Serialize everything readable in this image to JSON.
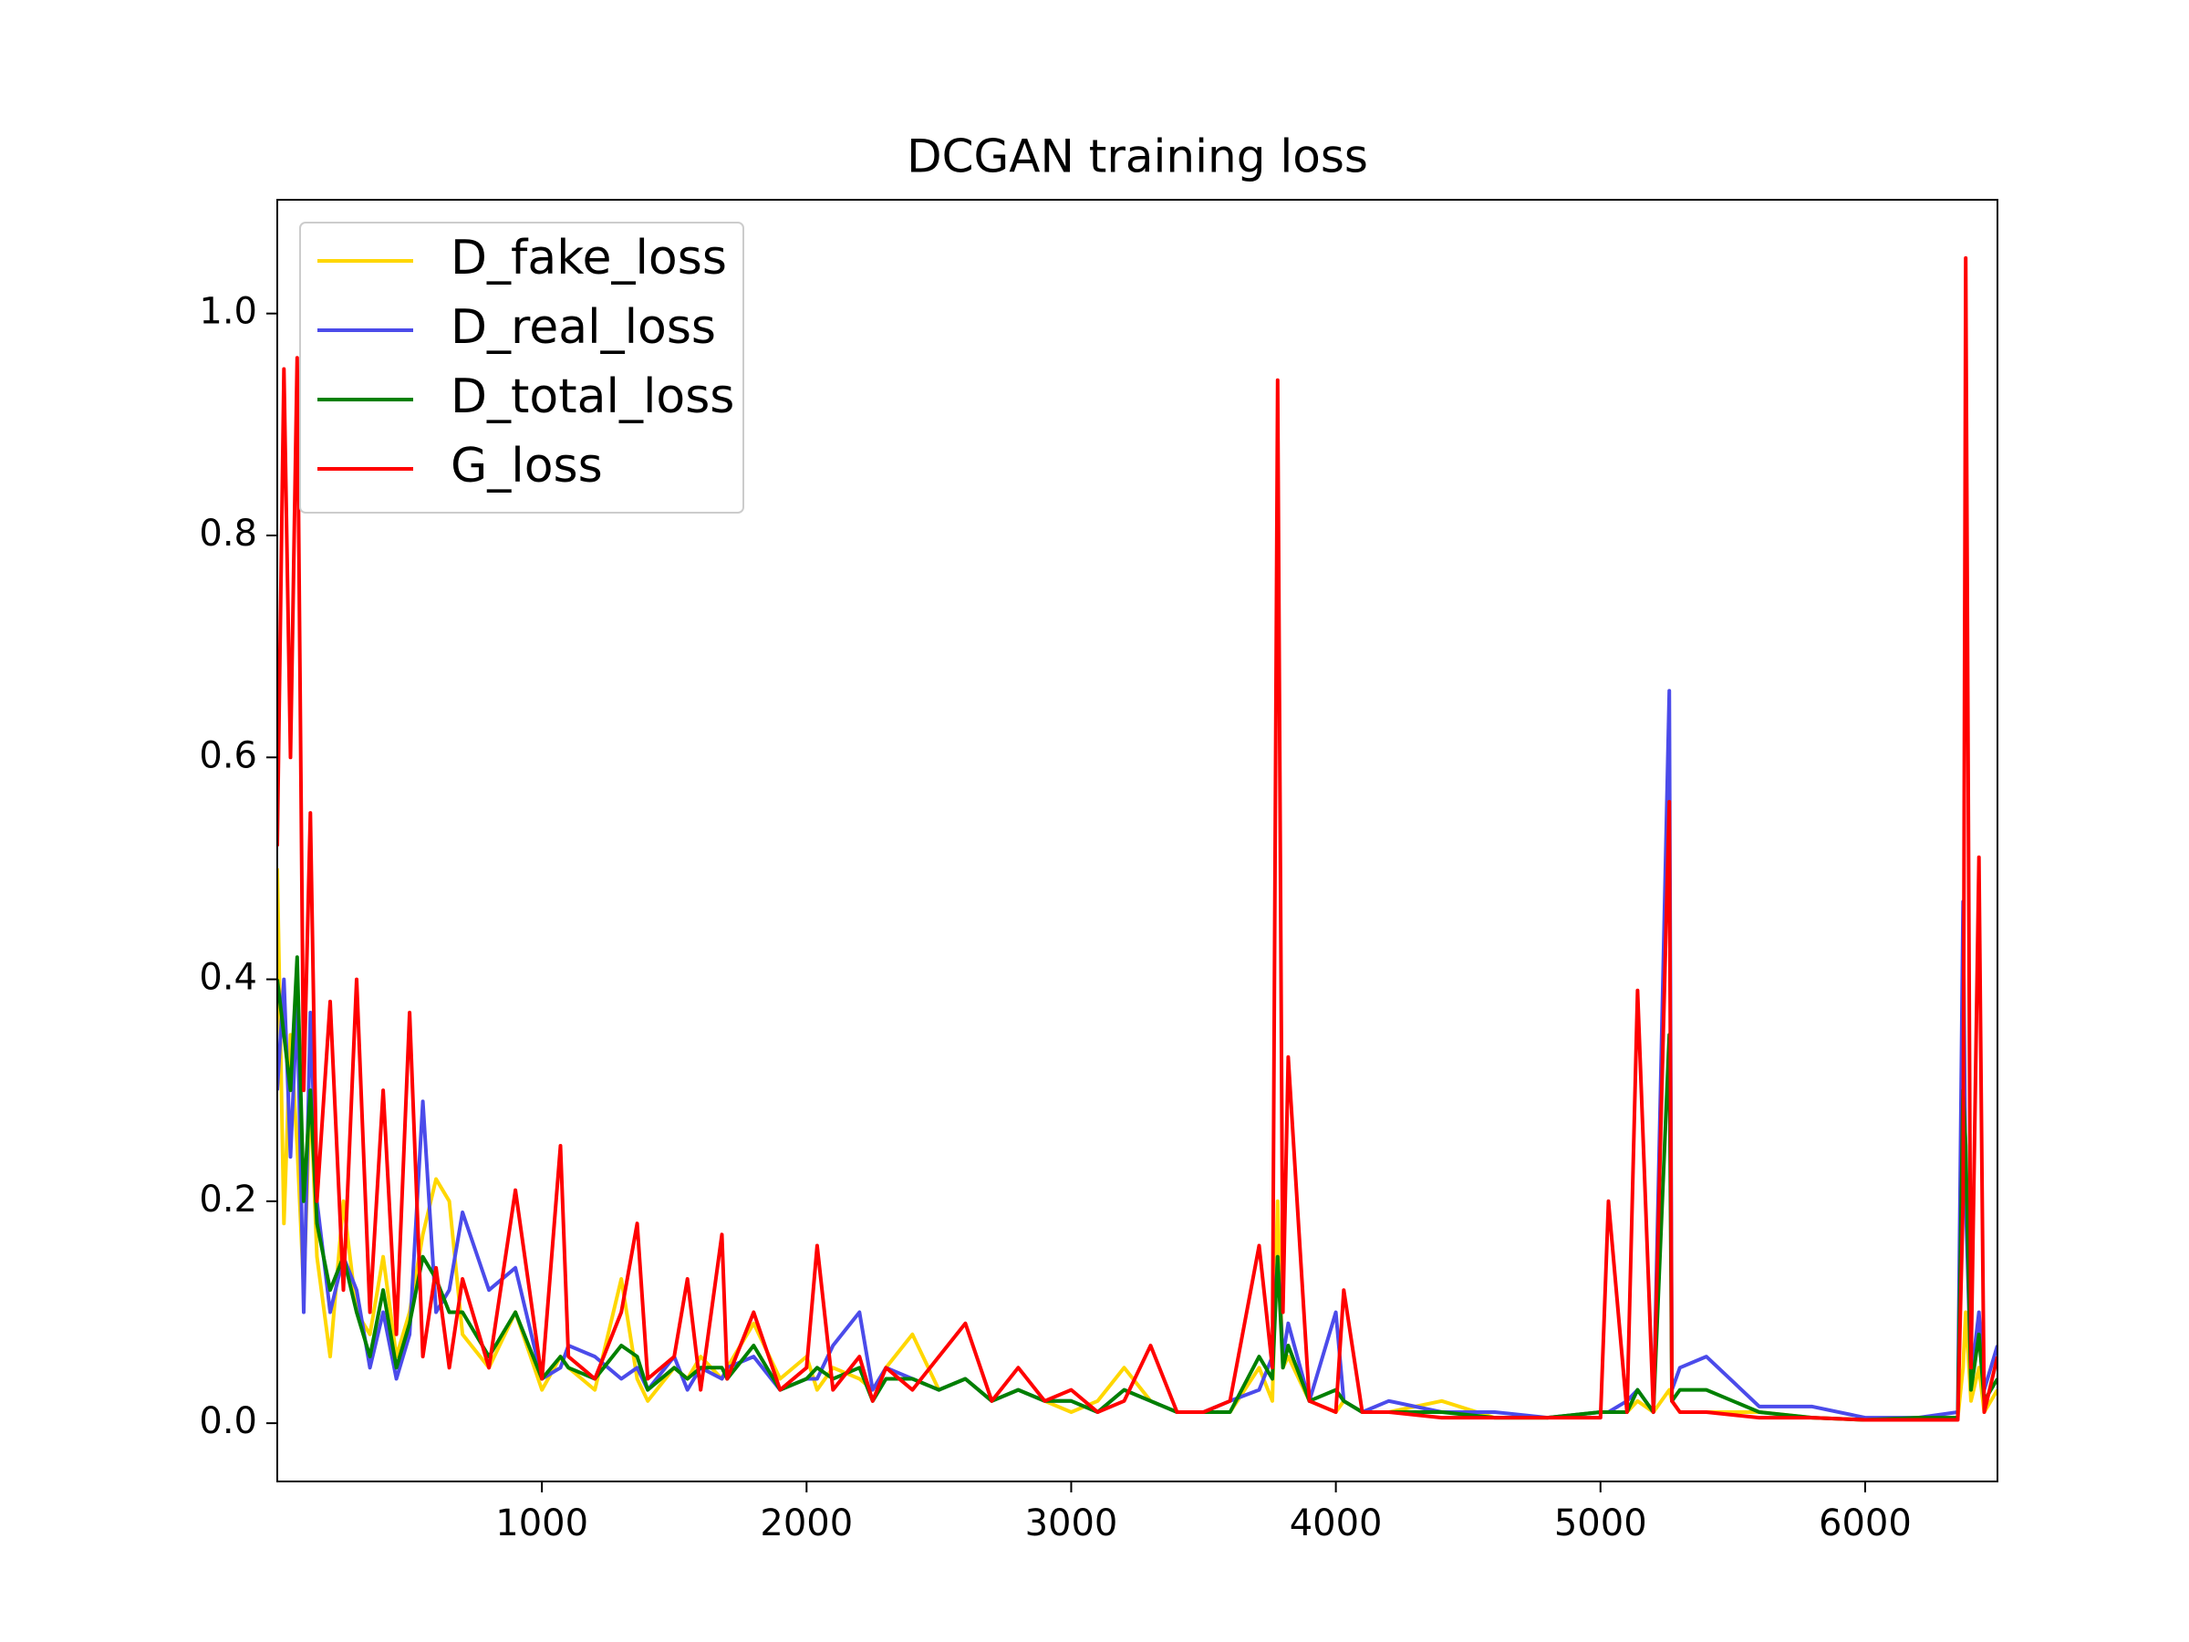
{
  "chart_data": {
    "type": "line",
    "title": "DCGAN training loss",
    "x": [
      0,
      25,
      50,
      75,
      100,
      125,
      150,
      200,
      250,
      300,
      350,
      400,
      450,
      500,
      550,
      600,
      650,
      700,
      800,
      900,
      1000,
      1070,
      1100,
      1200,
      1300,
      1360,
      1400,
      1500,
      1550,
      1600,
      1680,
      1700,
      1800,
      1900,
      2000,
      2040,
      2100,
      2200,
      2250,
      2300,
      2400,
      2500,
      2600,
      2700,
      2800,
      2900,
      3000,
      3100,
      3200,
      3300,
      3400,
      3500,
      3600,
      3710,
      3760,
      3780,
      3800,
      3820,
      3900,
      4000,
      4030,
      4100,
      4200,
      4400,
      4600,
      4800,
      5000,
      5030,
      5100,
      5140,
      5200,
      5260,
      5270,
      5300,
      5400,
      5600,
      5800,
      6000,
      6200,
      6350,
      6370,
      6380,
      6400,
      6430,
      6450,
      6500
    ],
    "series": [
      {
        "name": "D_fake_loss",
        "color": "#ffd700",
        "values": [
          0.5,
          0.18,
          0.35,
          0.25,
          0.12,
          0.3,
          0.15,
          0.06,
          0.2,
          0.1,
          0.08,
          0.15,
          0.06,
          0.1,
          0.17,
          0.22,
          0.2,
          0.08,
          0.05,
          0.1,
          0.03,
          0.06,
          0.05,
          0.03,
          0.13,
          0.04,
          0.02,
          0.05,
          0.04,
          0.06,
          0.04,
          0.05,
          0.09,
          0.04,
          0.06,
          0.03,
          0.05,
          0.04,
          0.03,
          0.05,
          0.08,
          0.03,
          0.04,
          0.02,
          0.03,
          0.02,
          0.01,
          0.02,
          0.05,
          0.02,
          0.01,
          0.01,
          0.01,
          0.05,
          0.02,
          0.2,
          0.05,
          0.06,
          0.02,
          0.01,
          0.02,
          0.01,
          0.01,
          0.02,
          0.005,
          0.005,
          0.01,
          0.01,
          0.01,
          0.02,
          0.01,
          0.03,
          0.02,
          0.01,
          0.01,
          0.01,
          0.005,
          0.003,
          0.005,
          0.005,
          0.05,
          0.1,
          0.02,
          0.05,
          0.01,
          0.03
        ]
      },
      {
        "name": "D_real_loss",
        "color": "#4b4bea",
        "values": [
          0.3,
          0.4,
          0.24,
          0.38,
          0.1,
          0.37,
          0.2,
          0.1,
          0.15,
          0.12,
          0.05,
          0.1,
          0.04,
          0.08,
          0.29,
          0.1,
          0.12,
          0.19,
          0.12,
          0.14,
          0.04,
          0.05,
          0.07,
          0.06,
          0.04,
          0.05,
          0.03,
          0.06,
          0.03,
          0.05,
          0.04,
          0.05,
          0.06,
          0.03,
          0.04,
          0.04,
          0.07,
          0.1,
          0.03,
          0.05,
          0.04,
          0.03,
          0.04,
          0.02,
          0.03,
          0.02,
          0.02,
          0.01,
          0.03,
          0.02,
          0.01,
          0.01,
          0.02,
          0.03,
          0.06,
          0.15,
          0.06,
          0.09,
          0.02,
          0.1,
          0.02,
          0.01,
          0.02,
          0.01,
          0.01,
          0.005,
          0.01,
          0.01,
          0.02,
          0.03,
          0.01,
          0.66,
          0.03,
          0.05,
          0.06,
          0.015,
          0.015,
          0.005,
          0.005,
          0.01,
          0.47,
          0.2,
          0.04,
          0.1,
          0.03,
          0.07
        ]
      },
      {
        "name": "D_total_loss",
        "color": "#008000",
        "values": [
          0.4,
          0.35,
          0.3,
          0.42,
          0.2,
          0.3,
          0.18,
          0.12,
          0.15,
          0.1,
          0.06,
          0.12,
          0.05,
          0.09,
          0.15,
          0.13,
          0.1,
          0.1,
          0.06,
          0.1,
          0.04,
          0.06,
          0.05,
          0.04,
          0.07,
          0.06,
          0.03,
          0.05,
          0.04,
          0.05,
          0.05,
          0.04,
          0.07,
          0.03,
          0.04,
          0.05,
          0.04,
          0.05,
          0.02,
          0.04,
          0.04,
          0.03,
          0.04,
          0.02,
          0.03,
          0.02,
          0.02,
          0.01,
          0.03,
          0.02,
          0.01,
          0.01,
          0.01,
          0.06,
          0.04,
          0.15,
          0.05,
          0.07,
          0.02,
          0.03,
          0.02,
          0.01,
          0.01,
          0.01,
          0.005,
          0.005,
          0.01,
          0.01,
          0.01,
          0.03,
          0.01,
          0.35,
          0.02,
          0.03,
          0.03,
          0.01,
          0.005,
          0.003,
          0.005,
          0.005,
          0.3,
          0.25,
          0.03,
          0.08,
          0.02,
          0.04
        ]
      },
      {
        "name": "G_loss",
        "color": "#ff0000",
        "values": [
          0.52,
          0.95,
          0.6,
          0.96,
          0.3,
          0.55,
          0.2,
          0.38,
          0.12,
          0.4,
          0.1,
          0.3,
          0.08,
          0.37,
          0.06,
          0.14,
          0.05,
          0.13,
          0.05,
          0.21,
          0.04,
          0.25,
          0.06,
          0.04,
          0.1,
          0.18,
          0.04,
          0.06,
          0.13,
          0.03,
          0.17,
          0.04,
          0.1,
          0.03,
          0.05,
          0.16,
          0.03,
          0.06,
          0.02,
          0.05,
          0.03,
          0.06,
          0.09,
          0.02,
          0.05,
          0.02,
          0.03,
          0.01,
          0.02,
          0.07,
          0.01,
          0.01,
          0.02,
          0.16,
          0.05,
          0.94,
          0.1,
          0.33,
          0.02,
          0.01,
          0.12,
          0.01,
          0.01,
          0.005,
          0.005,
          0.005,
          0.005,
          0.2,
          0.01,
          0.39,
          0.01,
          0.56,
          0.02,
          0.01,
          0.01,
          0.005,
          0.005,
          0.003,
          0.003,
          0.003,
          0.2,
          1.05,
          0.05,
          0.51,
          0.01,
          0.06
        ]
      }
    ],
    "xlim": [
      0,
      6500
    ],
    "xticks": [
      1000,
      2000,
      3000,
      4000,
      5000,
      6000
    ],
    "ylim": [
      -0.0525,
      1.1025
    ],
    "yticks": [
      {
        "value": 0,
        "label": "0.0"
      },
      0.2,
      0.4,
      0.6,
      0.8,
      {
        "value": 1,
        "label": "1.0"
      }
    ],
    "grid": false,
    "legend": "upper left"
  }
}
